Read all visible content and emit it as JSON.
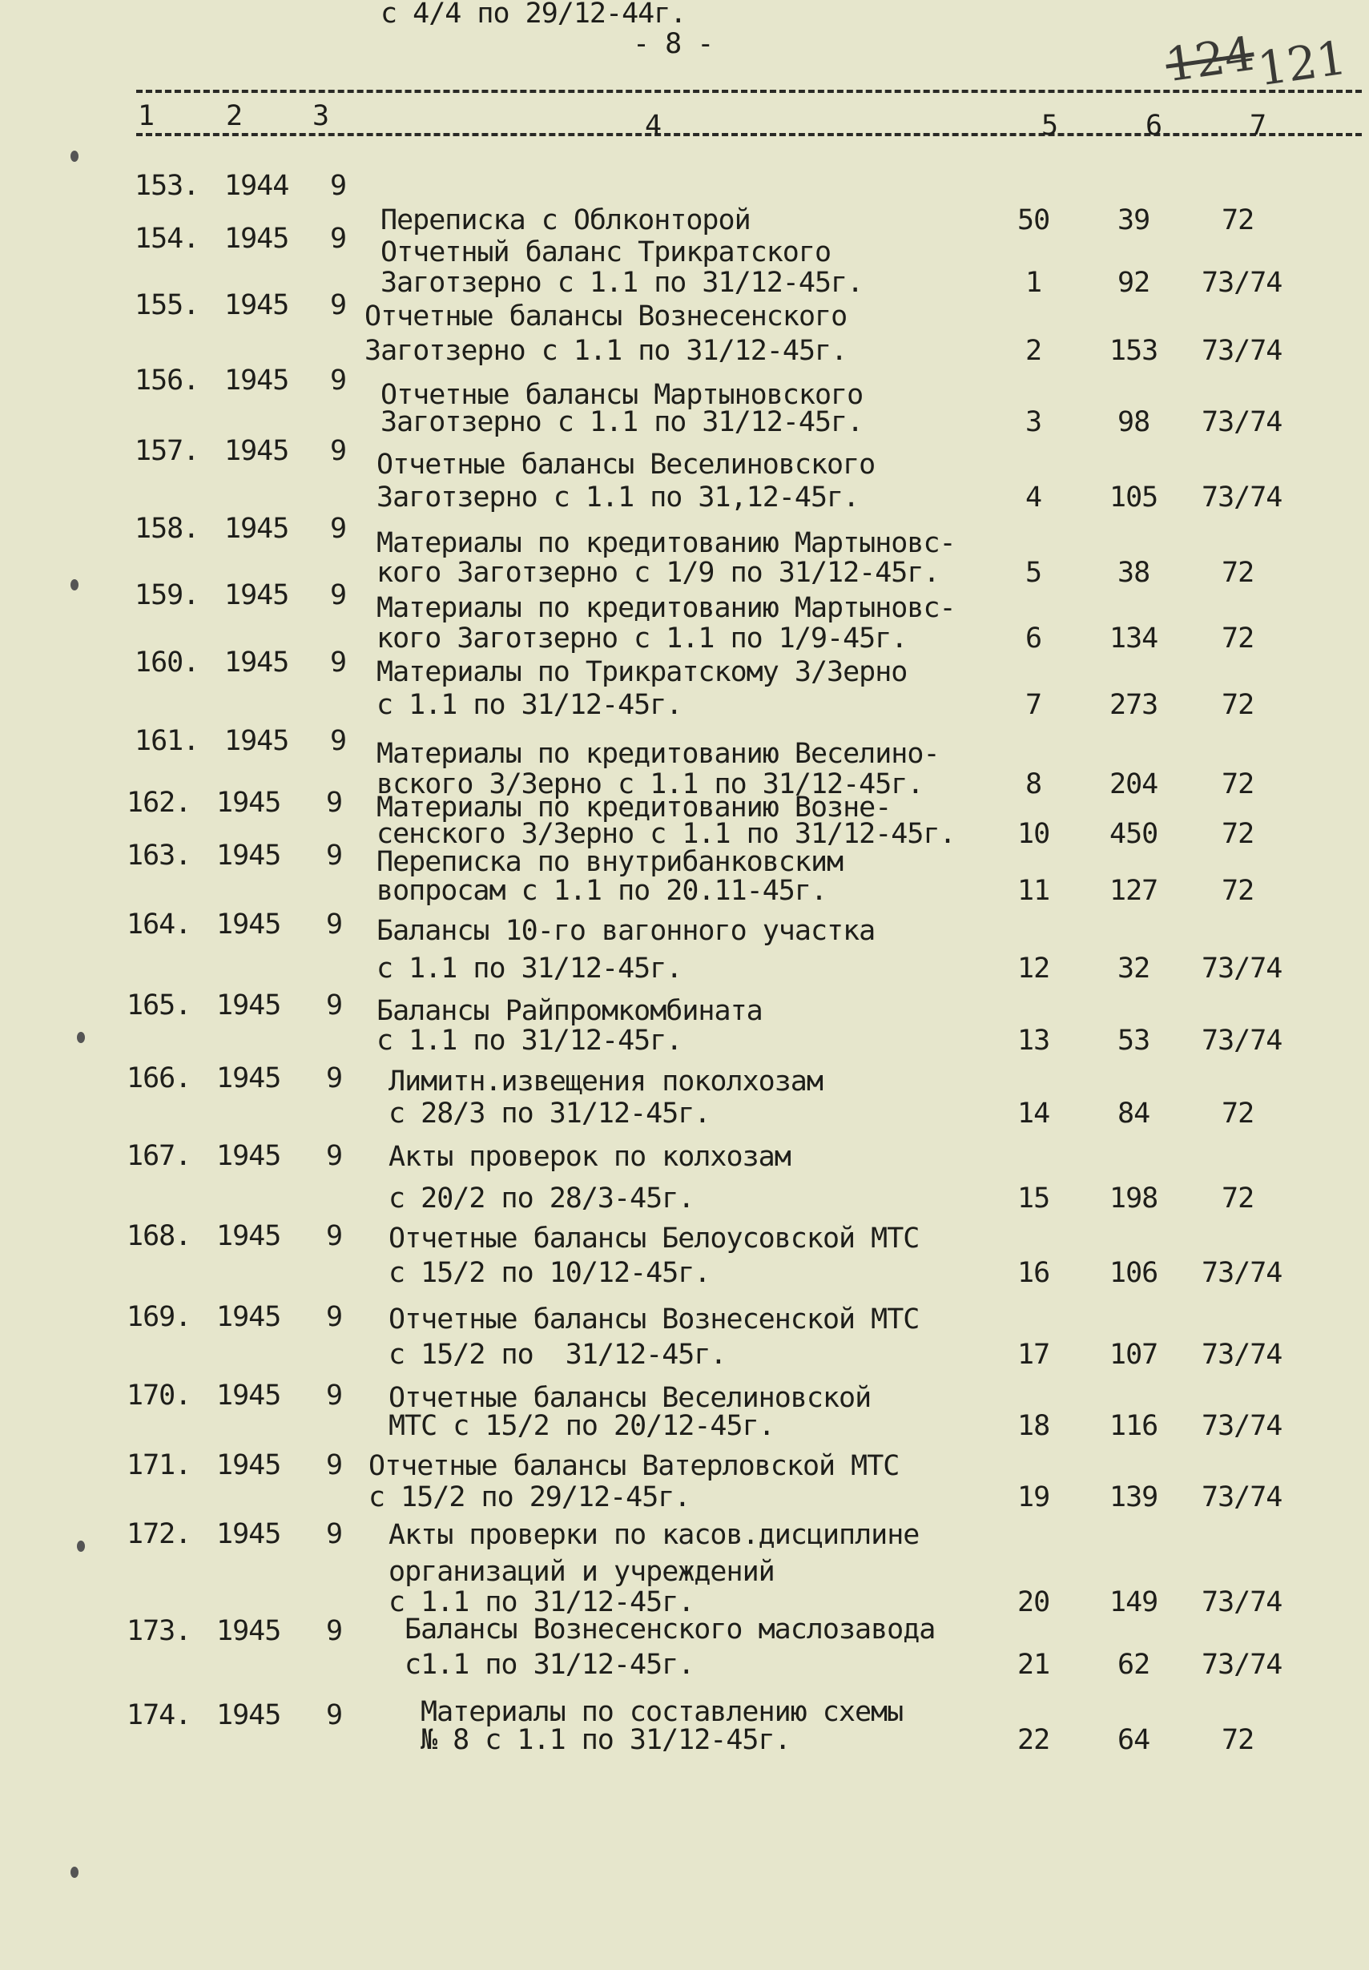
{
  "page_number": "- 8 -",
  "archive_sheet_number": {
    "crossed_out": "124",
    "current": "121"
  },
  "columns": [
    "1",
    "2",
    "3",
    "4",
    "5",
    "6",
    "7"
  ],
  "rows": [
    {
      "no": "153.",
      "year": "1944",
      "c3": "9",
      "desc": [
        "Переписка с Облконторой",
        "с 4/4 по 29/12-44г."
      ],
      "c5": "50",
      "c6": "39",
      "c7": "72"
    },
    {
      "no": "154.",
      "year": "1945",
      "c3": "9",
      "desc": [
        "Отчетный баланс Трикратского",
        "Заготзерно с 1.1 по 31/12-45г."
      ],
      "c5": "1",
      "c6": "92",
      "c7": "73/74"
    },
    {
      "no": "155.",
      "year": "1945",
      "c3": "9",
      "desc": [
        "Отчетные балансы Вознесенского",
        "Заготзерно с 1.1 по 31/12-45г."
      ],
      "c5": "2",
      "c6": "153",
      "c7": "73/74"
    },
    {
      "no": "156.",
      "year": "1945",
      "c3": "9",
      "desc": [
        "Отчетные балансы Мартыновского",
        "Заготзерно с 1.1 по 31/12-45г."
      ],
      "c5": "3",
      "c6": "98",
      "c7": "73/74"
    },
    {
      "no": "157.",
      "year": "1945",
      "c3": "9",
      "desc": [
        "Отчетные балансы Веселиновского",
        "Заготзерно с 1.1 по 31,12-45г."
      ],
      "c5": "4",
      "c6": "105",
      "c7": "73/74"
    },
    {
      "no": "158.",
      "year": "1945",
      "c3": "9",
      "desc": [
        "Материалы по кредитованию Мартыновс-",
        "кого Заготзерно с 1/9 по 31/12-45г."
      ],
      "c5": "5",
      "c6": "38",
      "c7": "72"
    },
    {
      "no": "159.",
      "year": "1945",
      "c3": "9",
      "desc": [
        "Материалы по кредитованию Мартыновс-",
        "кого Заготзерно с 1.1 по 1/9-45г."
      ],
      "c5": "6",
      "c6": "134",
      "c7": "72"
    },
    {
      "no": "160.",
      "year": "1945",
      "c3": "9",
      "desc": [
        "Материалы по Трикратскому З/Зерно",
        "с 1.1 по 31/12-45г."
      ],
      "c5": "7",
      "c6": "273",
      "c7": "72"
    },
    {
      "no": "161.",
      "year": "1945",
      "c3": "9",
      "desc": [
        "Материалы по кредитованию Веселино-",
        "вского З/Зерно с 1.1 по 31/12-45г."
      ],
      "c5": "8",
      "c6": "204",
      "c7": "72"
    },
    {
      "no": "162.",
      "year": "1945",
      "c3": "9",
      "desc": [
        "Материалы по кредитованию Возне-",
        "сенского З/Зерно с 1.1 по 31/12-45г."
      ],
      "c5": "10",
      "c6": "450",
      "c7": "72"
    },
    {
      "no": "163.",
      "year": "1945",
      "c3": "9",
      "desc": [
        "Переписка по внутрибанковским",
        "вопросам с 1.1 по 20.11-45г."
      ],
      "c5": "11",
      "c6": "127",
      "c7": "72"
    },
    {
      "no": "164.",
      "year": "1945",
      "c3": "9",
      "desc": [
        "Балансы 10-го вагонного участка",
        "с 1.1 по 31/12-45г."
      ],
      "c5": "12",
      "c6": "32",
      "c7": "73/74"
    },
    {
      "no": "165.",
      "year": "1945",
      "c3": "9",
      "desc": [
        "Балансы Райпромкомбината",
        "с 1.1 по 31/12-45г."
      ],
      "c5": "13",
      "c6": "53",
      "c7": "73/74"
    },
    {
      "no": "166.",
      "year": "1945",
      "c3": "9",
      "desc": [
        "Лимитн.извещения поколхозам",
        "с 28/3 по 31/12-45г."
      ],
      "c5": "14",
      "c6": "84",
      "c7": "72"
    },
    {
      "no": "167.",
      "year": "1945",
      "c3": "9",
      "desc": [
        "Акты проверок по колхозам",
        "с 20/2 по 28/3-45г."
      ],
      "c5": "15",
      "c6": "198",
      "c7": "72"
    },
    {
      "no": "168.",
      "year": "1945",
      "c3": "9",
      "desc": [
        "Отчетные балансы Белоусовской МТС",
        "с 15/2 по 10/12-45г."
      ],
      "c5": "16",
      "c6": "106",
      "c7": "73/74"
    },
    {
      "no": "169.",
      "year": "1945",
      "c3": "9",
      "desc": [
        "Отчетные балансы Вознесенской МТС",
        "с 15/2 по  31/12-45г."
      ],
      "c5": "17",
      "c6": "107",
      "c7": "73/74"
    },
    {
      "no": "170.",
      "year": "1945",
      "c3": "9",
      "desc": [
        "Отчетные балансы Веселиновской",
        "МТС с 15/2 по 20/12-45г."
      ],
      "c5": "18",
      "c6": "116",
      "c7": "73/74"
    },
    {
      "no": "171.",
      "year": "1945",
      "c3": "9",
      "desc": [
        "Отчетные балансы Ватерловской МТС",
        "с 15/2 по 29/12-45г."
      ],
      "c5": "19",
      "c6": "139",
      "c7": "73/74"
    },
    {
      "no": "172.",
      "year": "1945",
      "c3": "9",
      "desc": [
        "Акты проверки по касов.дисциплине",
        "организаций и учреждений",
        "с 1.1 по 31/12-45г."
      ],
      "c5": "20",
      "c6": "149",
      "c7": "73/74"
    },
    {
      "no": "173.",
      "year": "1945",
      "c3": "9",
      "desc": [
        "Балансы Вознесенского маслозавода",
        "с1.1 по 31/12-45г."
      ],
      "c5": "21",
      "c6": "62",
      "c7": "73/74"
    },
    {
      "no": "174.",
      "year": "1945",
      "c3": "9",
      "desc": [
        "Материалы по составлению схемы",
        "№ 8 с 1.1 по 31/12-45г."
      ],
      "c5": "22",
      "c6": "64",
      "c7": "72"
    }
  ]
}
